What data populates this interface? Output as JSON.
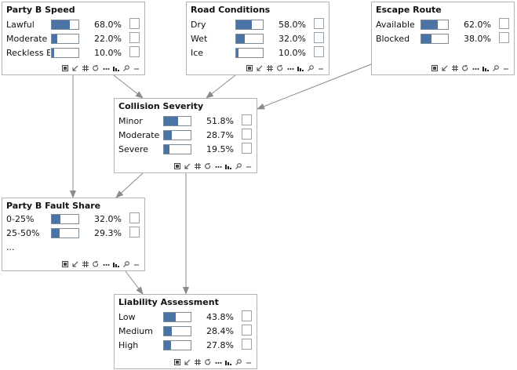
{
  "nodes": {
    "party_b_speed": {
      "title": "Party B Speed",
      "states": [
        {
          "label": "Lawful",
          "value": "68.0%",
          "p": 0.68
        },
        {
          "label": "Moderate Ex",
          "value": "22.0%",
          "p": 0.22
        },
        {
          "label": "Reckless Ex",
          "value": "10.0%",
          "p": 0.1
        }
      ]
    },
    "road_conditions": {
      "title": "Road Conditions",
      "states": [
        {
          "label": "Dry",
          "value": "58.0%",
          "p": 0.58
        },
        {
          "label": "Wet",
          "value": "32.0%",
          "p": 0.32
        },
        {
          "label": "Ice",
          "value": "10.0%",
          "p": 0.1
        }
      ]
    },
    "escape_route": {
      "title": "Escape Route",
      "states": [
        {
          "label": "Available",
          "value": "62.0%",
          "p": 0.62
        },
        {
          "label": "Blocked",
          "value": "38.0%",
          "p": 0.38
        }
      ]
    },
    "collision_severity": {
      "title": "Collision Severity",
      "states": [
        {
          "label": "Minor",
          "value": "51.8%",
          "p": 0.518
        },
        {
          "label": "Moderate",
          "value": "28.7%",
          "p": 0.287
        },
        {
          "label": "Severe",
          "value": "19.5%",
          "p": 0.195
        }
      ]
    },
    "party_b_fault_share": {
      "title": "Party B Fault Share",
      "states": [
        {
          "label": "0-25%",
          "value": "32.0%",
          "p": 0.32
        },
        {
          "label": "25-50%",
          "value": "29.3%",
          "p": 0.293
        }
      ],
      "more_label": "..."
    },
    "liability_assessment": {
      "title": "Liability Assessment",
      "states": [
        {
          "label": "Low",
          "value": "43.8%",
          "p": 0.438
        },
        {
          "label": "Medium",
          "value": "28.4%",
          "p": 0.284
        },
        {
          "label": "High",
          "value": "27.8%",
          "p": 0.278
        }
      ]
    }
  },
  "toolbar_icons": [
    "expand-icon",
    "arrow-icon",
    "grid-icon",
    "cycle-icon",
    "more-icon",
    "histogram-icon",
    "search-icon",
    "minimize-icon"
  ],
  "colors": {
    "bar": "#4a74a5",
    "border": "#aeb6bc",
    "edge": "#8a8a8a"
  }
}
